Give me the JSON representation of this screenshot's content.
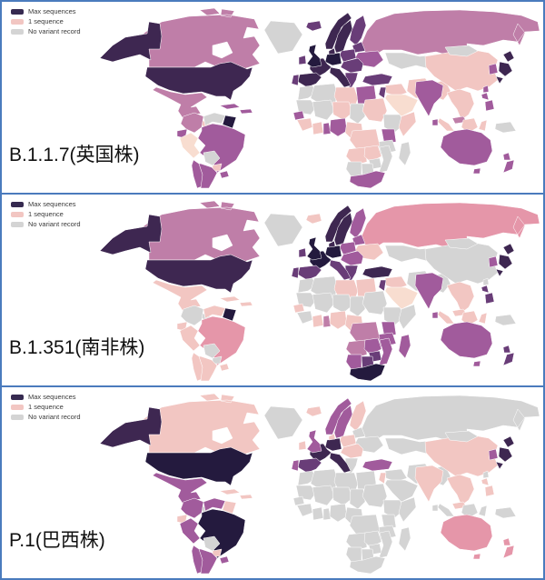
{
  "frame": {
    "border_color": "#4a7bbd",
    "background": "#ffffff"
  },
  "palette": {
    "top": "#241a3e",
    "dark": "#3e2751",
    "dpurple": "#693d78",
    "medium": "#a15b9c",
    "mauve": "#bf7ea8",
    "rose": "#e596a9",
    "pink": "#f2c6c2",
    "pale": "#f8ddd0",
    "gray": "#d4d4d4"
  },
  "map_defaults": {
    "default_category": "gray",
    "ocean": "#ffffff",
    "border": "#ffffff"
  },
  "legend": {
    "items": [
      {
        "label": "Max sequences",
        "color": "#362a50"
      },
      {
        "label": "1 sequence",
        "color": "#f2c6c2"
      },
      {
        "label": "No variant record",
        "color": "#d4d4d4"
      }
    ]
  },
  "panels": [
    {
      "label": "B.1.1.7(英国株)",
      "regions": {
        "alaska": "dark",
        "canada": "mauve",
        "usa": "dark",
        "mexico": "mauve",
        "centralam": "pink",
        "caribbean": "medium",
        "colombia": "mauve",
        "guyanas": "top",
        "ecuador": "medium",
        "peru": "pale",
        "brazil": "medium",
        "paraguay": "pink",
        "chile": "medium",
        "argentina": "medium",
        "uruguay": "medium",
        "iceland": "dpurple",
        "ireland": "dpurple",
        "uk": "top",
        "norway": "dark",
        "sweden": "dark",
        "finland": "dpurple",
        "denmark": "dark",
        "baltics": "dpurple",
        "germany": "top",
        "poland": "dpurple",
        "france": "dark",
        "spain": "dark",
        "portugal": "dpurple",
        "italy": "dark",
        "easteurope": "dpurple",
        "balkans": "dpurple",
        "ukraine": "medium",
        "russia": "mauve",
        "turkey": "dpurple",
        "syriairaq": "pink",
        "israel": "dpurple",
        "saudi": "pale",
        "iran": "pink",
        "afghanpak": "pink",
        "libya": "pink",
        "egypt": "medium",
        "niger": "pink",
        "sudan": "pink",
        "senegal": "medium",
        "guinea": "pink",
        "ivorycoast": "pink",
        "ghana": "medium",
        "nigeria": "medium",
        "cameroon": "pink",
        "somalia": "pink",
        "kenya": "medium",
        "drc": "pink",
        "angola": "pink",
        "zambia": "pink",
        "southafrica": "medium",
        "india": "medium",
        "srilanka": "medium",
        "china": "pink",
        "seasia": "pink",
        "malaysia": "mauve",
        "indonesia": "pink",
        "philippines": "medium",
        "taiwan": "medium",
        "southkorea": "medium",
        "japan": "dark",
        "australia": "medium",
        "tasmania": "medium",
        "newzealand": "medium"
      }
    },
    {
      "label": "B.1.351(南非株)",
      "regions": {
        "alaska": "dark",
        "canada": "mauve",
        "usa": "dark",
        "mexico": "pink",
        "caribbean": "pink",
        "venezuela": "pink",
        "guyanas": "top",
        "ecuador": "pink",
        "peru": "pink",
        "brazil": "rose",
        "chile": "pink",
        "argentina": "pink",
        "uruguay": "pink",
        "iceland": "pink",
        "ireland": "dpurple",
        "uk": "top",
        "norway": "dark",
        "sweden": "dark",
        "finland": "medium",
        "denmark": "dark",
        "baltics": "medium",
        "germany": "top",
        "poland": "medium",
        "france": "top",
        "spain": "dpurple",
        "portugal": "dpurple",
        "italy": "dpurple",
        "easteurope": "medium",
        "balkans": "dpurple",
        "ukraine": "pink",
        "russia": "rose",
        "turkey": "dark",
        "syriairaq": "pink",
        "israel": "dpurple",
        "saudi": "pale",
        "libya": "pink",
        "egypt": "pink",
        "senegal": "pink",
        "ivorycoast": "pink",
        "ghana": "mauve",
        "nigeria": "pink",
        "cameroon": "pink",
        "kenya": "medium",
        "tanzania": "medium",
        "drc": "mauve",
        "angola": "mauve",
        "zambia": "medium",
        "zimbabwe": "dpurple",
        "mozambique": "medium",
        "namibia": "medium",
        "botswana": "dpurple",
        "southafrica": "top",
        "madagascar": "medium",
        "india": "medium",
        "srilanka": "medium",
        "seasia": "pink",
        "malaysia": "pink",
        "indonesia": "pink",
        "philippines": "dpurple",
        "southkorea": "medium",
        "japan": "dark",
        "australia": "medium",
        "tasmania": "medium",
        "newzealand": "dpurple"
      }
    },
    {
      "label": "P.1(巴西株)",
      "regions": {
        "alaska": "dark",
        "canada": "pink",
        "usa": "top",
        "mexico": "medium",
        "caribbean": "pink",
        "colombia": "medium",
        "venezuela": "medium",
        "guyanas": "pink",
        "ecuador": "pink",
        "peru": "medium",
        "brazil": "top",
        "paraguay": "pink",
        "chile": "medium",
        "argentina": "medium",
        "uruguay": "medium",
        "iceland": "pink",
        "ireland": "pink",
        "uk": "medium",
        "norway": "medium",
        "sweden": "medium",
        "finland": "pink",
        "denmark": "pink",
        "germany": "dark",
        "poland": "pink",
        "france": "dark",
        "spain": "dpurple",
        "portugal": "medium",
        "italy": "dark",
        "easteurope": "pink",
        "turkey": "medium",
        "israel": "pink",
        "india": "pink",
        "china": "pink",
        "seasia": "pink",
        "malaysia": "pink",
        "philippines": "pink",
        "southkorea": "medium",
        "japan": "dark",
        "australia": "rose",
        "tasmania": "rose",
        "newzealand": "rose"
      }
    }
  ]
}
